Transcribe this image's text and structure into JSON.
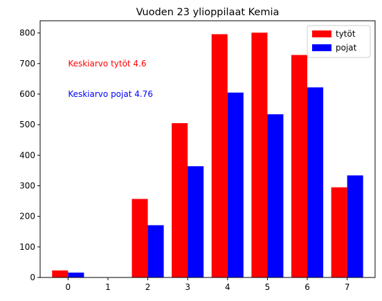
{
  "chart_data": {
    "type": "bar",
    "title": "Vuoden 23 ylioppilaat Kemia",
    "xlabel": "",
    "ylabel": "",
    "categories": [
      "0",
      "1",
      "2",
      "3",
      "4",
      "5",
      "6",
      "7"
    ],
    "series": [
      {
        "name": "tytöt",
        "color": "#ff0000",
        "values": [
          23,
          0,
          257,
          505,
          796,
          801,
          728,
          295
        ]
      },
      {
        "name": "pojat",
        "color": "#0000ff",
        "values": [
          16,
          0,
          171,
          364,
          605,
          534,
          622,
          334
        ]
      }
    ],
    "ylim": [
      0,
      840
    ],
    "yticks": [
      0,
      100,
      200,
      300,
      400,
      500,
      600,
      700,
      800
    ],
    "legend": {
      "placement": "top-right"
    },
    "grid": false,
    "annotations": [
      {
        "text": "Keskiarvo tytöt 4.6",
        "x": 0,
        "y": 700,
        "color": "#ff0000"
      },
      {
        "text": "Keskiarvo pojat 4.76",
        "x": 0,
        "y": 600,
        "color": "#0000ff"
      }
    ]
  }
}
